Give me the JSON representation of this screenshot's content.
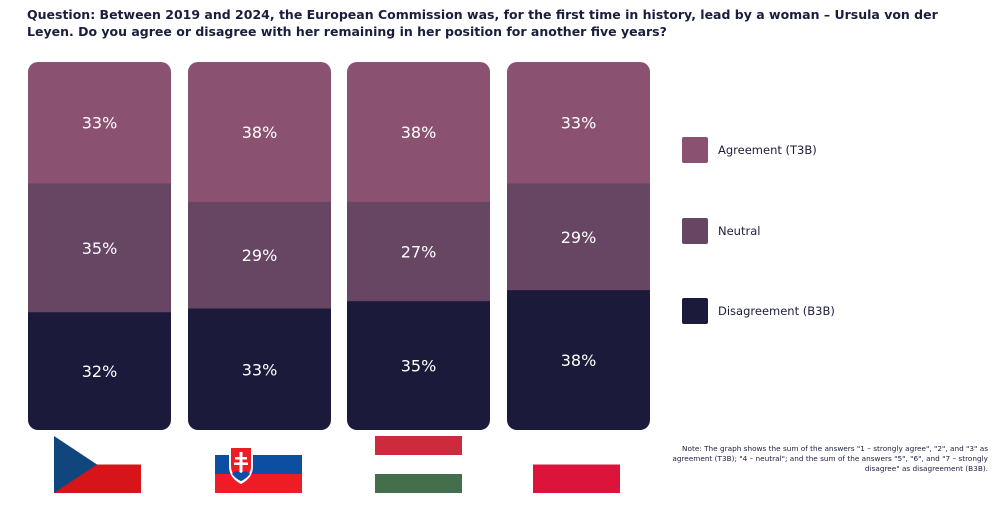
{
  "question": "Question: Between 2019 and 2024, the European Commission was, for the first time in history, lead by a woman – Ursula von der Leyen. Do you agree or disagree with her remaining in her position for another five years?",
  "note": "Note: The graph shows the sum of the answers \"1 – strongly agree\", \"2\", and \"3\" as agreement (T3B); \"4 – neutral\"; and the sum of the answers \"5\", \"6\", and \"7 – strongly disagree\" as disagreement (B3B).",
  "colors": {
    "agreement": "#8a5270",
    "neutral": "#664663",
    "disagreement": "#1b1a3b",
    "label_text": "#ffffff"
  },
  "legend": [
    {
      "key": "agreement",
      "label": "Agreement (T3B)"
    },
    {
      "key": "neutral",
      "label": "Neutral"
    },
    {
      "key": "disagreement",
      "label": "Disagreement (B3B)"
    }
  ],
  "chart_data": {
    "type": "bar",
    "stacked": true,
    "categories": [
      "Czech Republic",
      "Slovakia",
      "Hungary",
      "Poland"
    ],
    "series": [
      {
        "name": "Agreement (T3B)",
        "values": [
          33,
          38,
          38,
          33
        ]
      },
      {
        "name": "Neutral",
        "values": [
          35,
          29,
          27,
          29
        ]
      },
      {
        "name": "Disagreement (B3B)",
        "values": [
          32,
          33,
          35,
          38
        ]
      }
    ],
    "value_suffix": "%",
    "legend_position": "right"
  },
  "flags": [
    {
      "country": "Czech Republic",
      "icon": "czech-flag-icon"
    },
    {
      "country": "Slovakia",
      "icon": "slovak-flag-icon"
    },
    {
      "country": "Hungary",
      "icon": "hungarian-flag-icon"
    },
    {
      "country": "Poland",
      "icon": "polish-flag-icon"
    }
  ]
}
